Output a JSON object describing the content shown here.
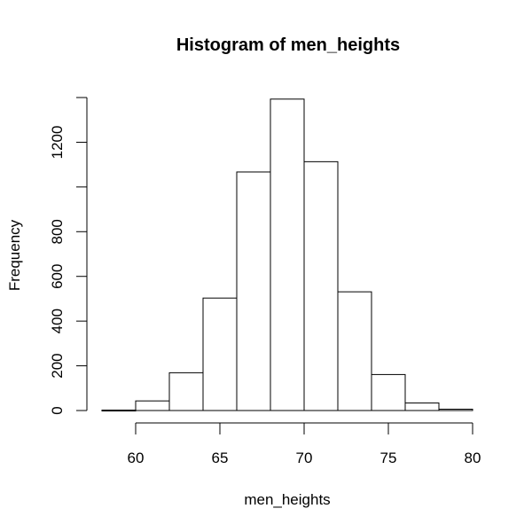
{
  "chart_data": {
    "type": "bar",
    "title": "Histogram of men_heights",
    "xlabel": "men_heights",
    "ylabel": "Frequency",
    "bins": [
      {
        "x0": 58,
        "x1": 60,
        "value": 2
      },
      {
        "x0": 60,
        "x1": 62,
        "value": 43
      },
      {
        "x0": 62,
        "x1": 64,
        "value": 169
      },
      {
        "x0": 64,
        "x1": 66,
        "value": 503
      },
      {
        "x0": 66,
        "x1": 68,
        "value": 1067
      },
      {
        "x0": 68,
        "x1": 70,
        "value": 1393
      },
      {
        "x0": 70,
        "x1": 72,
        "value": 1113
      },
      {
        "x0": 72,
        "x1": 74,
        "value": 531
      },
      {
        "x0": 74,
        "x1": 76,
        "value": 161
      },
      {
        "x0": 76,
        "x1": 78,
        "value": 34
      },
      {
        "x0": 78,
        "x1": 80,
        "value": 6
      }
    ],
    "xticks": [
      60,
      65,
      70,
      75,
      80
    ],
    "yticks": [
      0,
      200,
      400,
      600,
      800,
      1000,
      1200,
      1400
    ],
    "ytick_labels": [
      "0",
      "200",
      "400",
      "600",
      "800",
      "",
      "1200",
      ""
    ],
    "xlim": [
      60,
      80
    ],
    "ylim": [
      0,
      1400
    ],
    "grid": false,
    "colors": {
      "bar_fill": "#ffffff",
      "bar_stroke": "#000000"
    }
  }
}
